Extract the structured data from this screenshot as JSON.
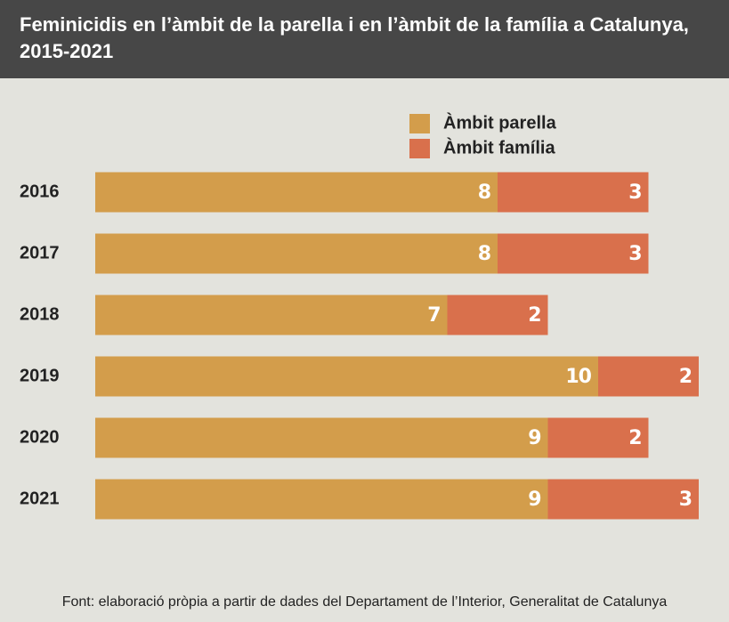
{
  "chart_data": {
    "type": "stacked-bar-horizontal",
    "title": "Feminicidis en l’àmbit de la parella i en l’àmbit de la família a Catalunya, 2015-2021",
    "categories": [
      "2016",
      "2017",
      "2018",
      "2019",
      "2020",
      "2021"
    ],
    "series": [
      {
        "name": "Àmbit parella",
        "color": "#d39d4b",
        "values": [
          8,
          8,
          7,
          10,
          9,
          9
        ]
      },
      {
        "name": "Àmbit família",
        "color": "#d9704c",
        "values": [
          3,
          3,
          2,
          2,
          2,
          3
        ]
      }
    ],
    "source": "Font: elaboració pròpia a partir de dades del Departament de l’Interior, Generalitat de Catalunya"
  }
}
